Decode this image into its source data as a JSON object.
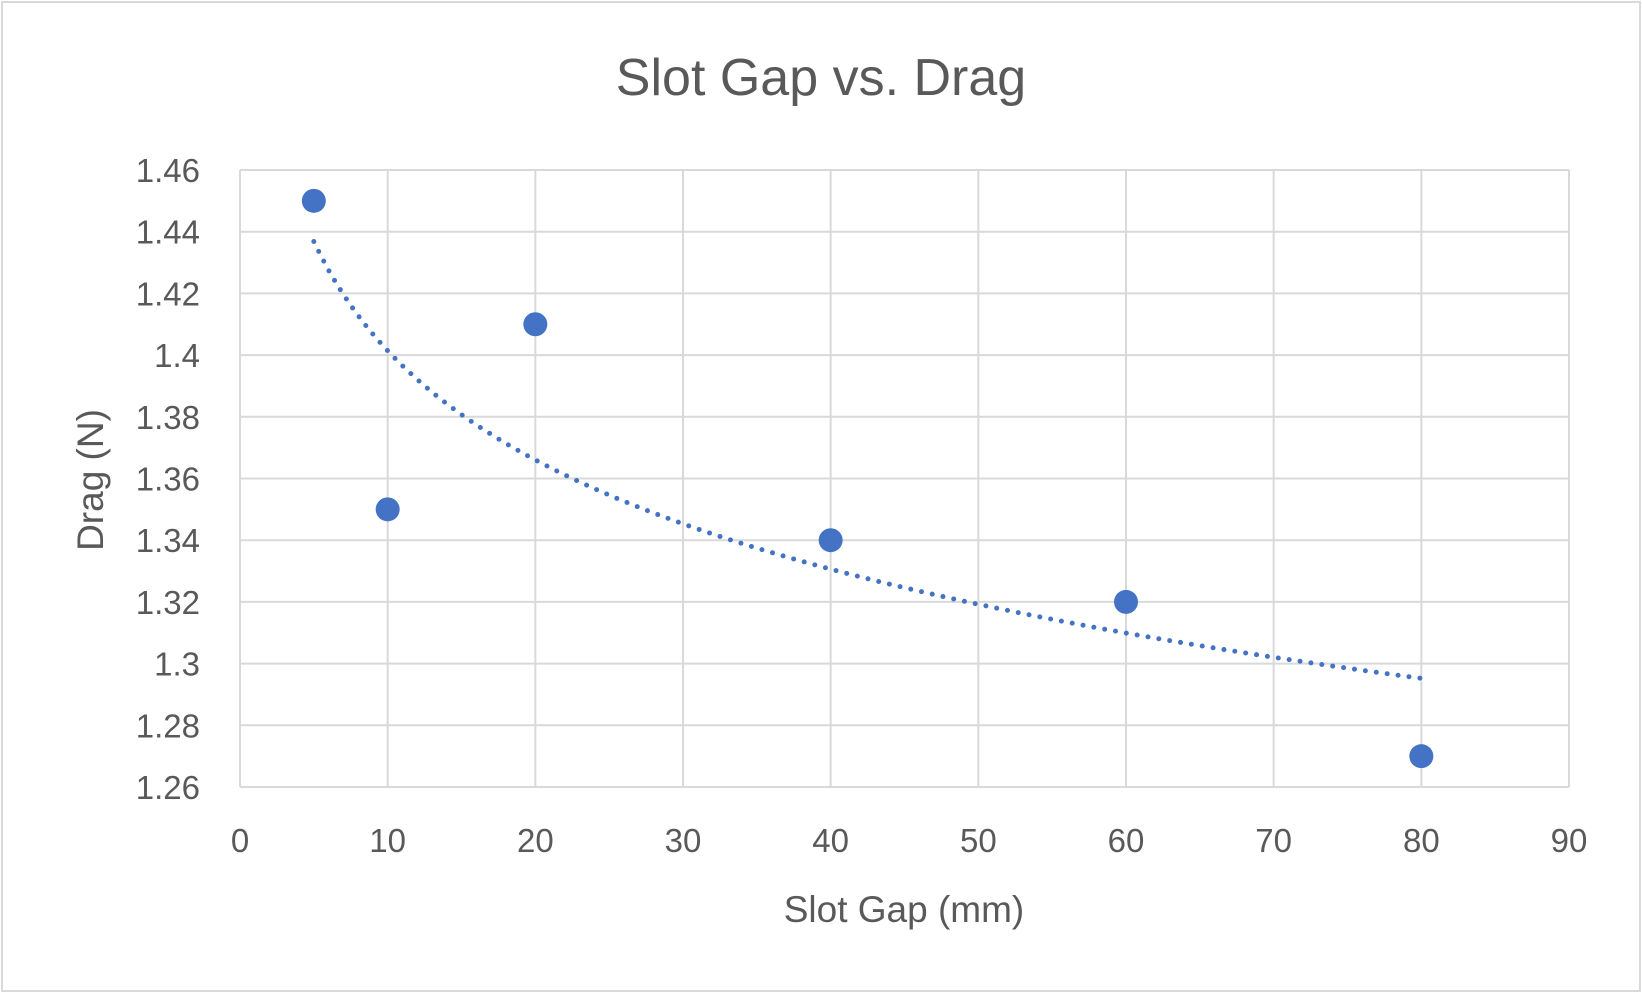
{
  "chart_data": {
    "type": "scatter",
    "title": "Slot Gap vs. Drag",
    "xlabel": "Slot Gap (mm)",
    "ylabel": "Drag (N)",
    "xlim": [
      0,
      90
    ],
    "ylim": [
      1.26,
      1.46
    ],
    "x_ticks": [
      "0",
      "10",
      "20",
      "30",
      "40",
      "50",
      "60",
      "70",
      "80",
      "90"
    ],
    "y_ticks": [
      "1.26",
      "1.28",
      "1.3",
      "1.32",
      "1.34",
      "1.36",
      "1.38",
      "1.4",
      "1.42",
      "1.44",
      "1.46"
    ],
    "grid": true,
    "legend": "none",
    "points": [
      {
        "x": 5,
        "y": 1.45
      },
      {
        "x": 10,
        "y": 1.35
      },
      {
        "x": 20,
        "y": 1.41
      },
      {
        "x": 40,
        "y": 1.34
      },
      {
        "x": 60,
        "y": 1.32
      },
      {
        "x": 80,
        "y": 1.27
      }
    ],
    "trendline": {
      "type": "logarithmic",
      "style": "dotted",
      "x_range": [
        5,
        80
      ],
      "samples": [
        {
          "x": 5,
          "y": 1.438
        },
        {
          "x": 10,
          "y": 1.4
        },
        {
          "x": 20,
          "y": 1.365
        },
        {
          "x": 40,
          "y": 1.33
        },
        {
          "x": 60,
          "y": 1.31
        },
        {
          "x": 80,
          "y": 1.296
        }
      ]
    },
    "colors": {
      "marker": "#4472c4",
      "trendline": "#4472c4",
      "grid": "#d9d9d9",
      "text": "#595959"
    }
  }
}
